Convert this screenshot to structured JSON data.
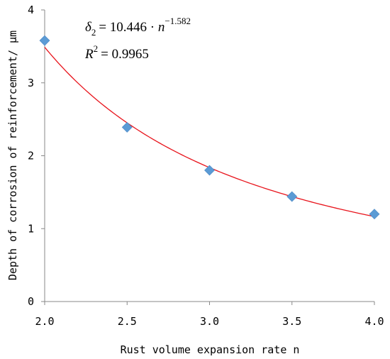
{
  "chart_data": {
    "type": "scatter",
    "xlabel": "Rust volume expansion rate n",
    "ylabel": "Depth of corrosion of reinforcement/ μm",
    "xlim": [
      2.0,
      4.0
    ],
    "ylim": [
      0,
      4
    ],
    "x_ticks": [
      "2.0",
      "2.5",
      "3.0",
      "3.5",
      "4.0"
    ],
    "y_ticks": [
      "0",
      "1",
      "2",
      "3",
      "4"
    ],
    "grid": false,
    "points": {
      "x": [
        2.0,
        2.5,
        3.0,
        3.5,
        4.0
      ],
      "y": [
        3.58,
        2.39,
        1.8,
        1.44,
        1.2
      ],
      "color": "#5b9bd5",
      "marker": "diamond"
    },
    "fit": {
      "coefficient": 10.446,
      "exponent": -1.582,
      "color": "#e8141c"
    },
    "equation": {
      "lhs_symbol": "δ",
      "lhs_subscript": "2",
      "rhs_prefix": "= 10.446 · ",
      "variable": "n",
      "power": "−1.582"
    },
    "r_squared": {
      "symbol": "R",
      "power": "2",
      "value_text": "= 0.9965"
    }
  }
}
